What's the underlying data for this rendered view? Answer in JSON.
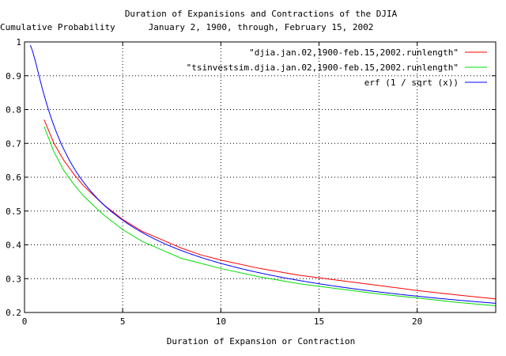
{
  "chart_data": {
    "type": "line",
    "title": "Duration of Expanisions and Contractions of the DJIA",
    "subtitle": "January 2, 1900, through, February 15, 2002",
    "xlabel": "Duration of Expansion or Contraction",
    "ylabel": "Cumulative Probability",
    "xlim": [
      0,
      24
    ],
    "ylim": [
      0.2,
      1.0
    ],
    "x_ticks": [
      0,
      5,
      10,
      15,
      20
    ],
    "y_ticks": [
      0.2,
      0.3,
      0.4,
      0.5,
      0.6,
      0.7,
      0.8,
      0.9,
      1.0
    ],
    "x_tick_labels": [
      "0",
      "5",
      "10",
      "15",
      "20"
    ],
    "y_tick_labels": [
      "0.2",
      "0.3",
      "0.4",
      "0.5",
      "0.6",
      "0.7",
      "0.8",
      "0.9",
      "1"
    ],
    "grid": true,
    "legend_position": "top-right",
    "series": [
      {
        "name": "\"djia.jan.02,1900-feb.15,2002.runlength\"",
        "color": "#ff0000",
        "x": [
          1,
          1.5,
          2,
          2.5,
          3,
          4,
          5,
          6,
          7,
          8,
          9,
          10,
          12,
          14,
          16,
          18,
          20,
          22,
          24
        ],
        "y": [
          0.77,
          0.7,
          0.65,
          0.61,
          0.575,
          0.52,
          0.475,
          0.44,
          0.415,
          0.39,
          0.37,
          0.355,
          0.33,
          0.31,
          0.295,
          0.28,
          0.265,
          0.252,
          0.24
        ]
      },
      {
        "name": "\"tsinvestsim.djia.jan.02,1900-feb.15,2002.runlength\"",
        "color": "#00dd00",
        "x": [
          1,
          1.5,
          2,
          2.5,
          3,
          4,
          5,
          6,
          7,
          8,
          9,
          10,
          12,
          14,
          16,
          18,
          20,
          22,
          24
        ],
        "y": [
          0.75,
          0.675,
          0.62,
          0.58,
          0.545,
          0.49,
          0.445,
          0.41,
          0.385,
          0.36,
          0.345,
          0.33,
          0.305,
          0.285,
          0.27,
          0.255,
          0.243,
          0.23,
          0.22
        ]
      },
      {
        "name": "erf (1 / sqrt (x))",
        "color": "#0000ff",
        "function": "erf(1/sqrt(x))",
        "x_start": 0.3
      }
    ]
  }
}
